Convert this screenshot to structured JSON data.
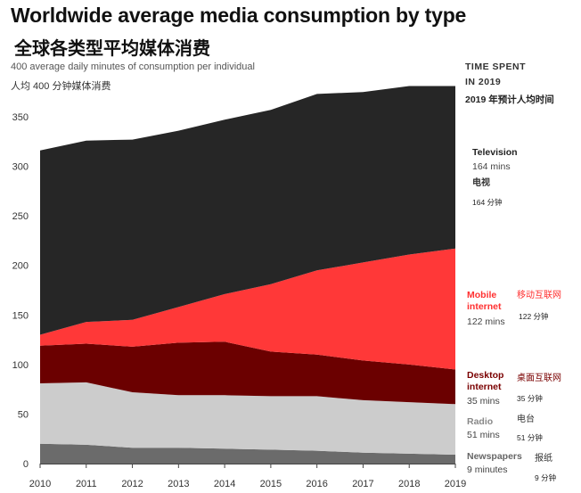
{
  "title": "Worldwide average media consumption by type",
  "title_zh": "全球各类型平均媒体消费",
  "subtitle": "400 average daily minutes of consumption per individual",
  "subtitle_zh": "人均 400 分钟媒体消费",
  "legend_header": {
    "line1": "TIME SPENT",
    "line2": "IN 2019",
    "zh": "2019 年预计人均时间"
  },
  "chart_data": {
    "type": "area",
    "stacked": true,
    "x": [
      2010,
      2011,
      2012,
      2013,
      2014,
      2015,
      2016,
      2017,
      2018,
      2019
    ],
    "ylim": [
      0,
      400
    ],
    "yticks": [
      0,
      50,
      100,
      150,
      200,
      250,
      300,
      350
    ],
    "series": [
      {
        "key": "newspapers",
        "name": "Newspapers",
        "name_zh": "报纸",
        "mins_label": "9 minutes",
        "mins_zh": "9 分钟",
        "color": "#6b6b6b",
        "label_color": "#666666",
        "values": [
          20,
          19,
          16,
          16,
          15,
          14,
          13,
          11,
          10,
          9
        ]
      },
      {
        "key": "radio",
        "name": "Radio",
        "name_zh": "电台",
        "mins_label": "51 mins",
        "mins_zh": "51 分钟",
        "color": "#cccccc",
        "label_color": "#888888",
        "values": [
          61,
          63,
          56,
          53,
          54,
          54,
          55,
          53,
          52,
          51
        ]
      },
      {
        "key": "desktop",
        "name": "Desktop internet",
        "name_zh": "桌面互联网",
        "mins_label": "35 mins",
        "mins_zh": "35 分钟",
        "color": "#6b0000",
        "label_color": "#7a0000",
        "values": [
          38,
          39,
          46,
          53,
          54,
          45,
          42,
          40,
          38,
          35
        ]
      },
      {
        "key": "mobile",
        "name": "Mobile internet",
        "name_zh": "移动互联网",
        "mins_label": "122 mins",
        "mins_zh": "122 分钟",
        "color": "#ff3838",
        "label_color": "#ff3030",
        "values": [
          11,
          22,
          27,
          36,
          48,
          68,
          85,
          99,
          111,
          122
        ]
      },
      {
        "key": "television",
        "name": "Television",
        "name_zh": "电视",
        "mins_label": "164 mins",
        "mins_zh": "164 分钟",
        "color": "#262626",
        "label_color": "#222222",
        "values": [
          186,
          183,
          182,
          178,
          176,
          176,
          178,
          172,
          170,
          164
        ]
      }
    ]
  }
}
